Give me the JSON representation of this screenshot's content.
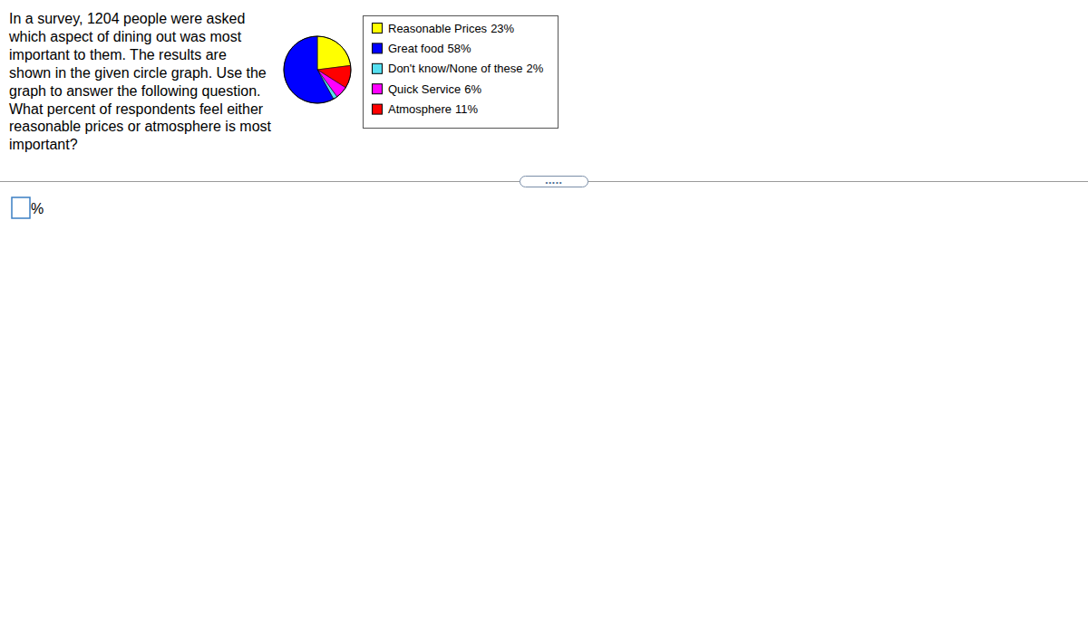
{
  "chart_data": {
    "type": "pie",
    "categories": [
      "Reasonable Prices",
      "Great food",
      "Don't know/None of these",
      "Quick Service",
      "Atmosphere"
    ],
    "values": [
      23,
      58,
      2,
      6,
      11
    ],
    "value_labels": [
      "23%",
      "58%",
      "2%",
      "6%",
      "11%"
    ],
    "colors": [
      "#ffff00",
      "#0000ff",
      "#55dff0",
      "#ff00ff",
      "#ff0000"
    ],
    "legend": "right"
  },
  "question": {
    "lines": [
      "In a survey, 1204 people were asked",
      "which aspect of dining out was most",
      "important to them.  The results are",
      "shown in the given circle graph.  Use the",
      "graph to answer the following question.",
      "What percent of respondents feel either",
      "reasonable prices or atmosphere is most",
      "important?"
    ],
    "answer_unit": "%",
    "more_button": "•••••"
  }
}
